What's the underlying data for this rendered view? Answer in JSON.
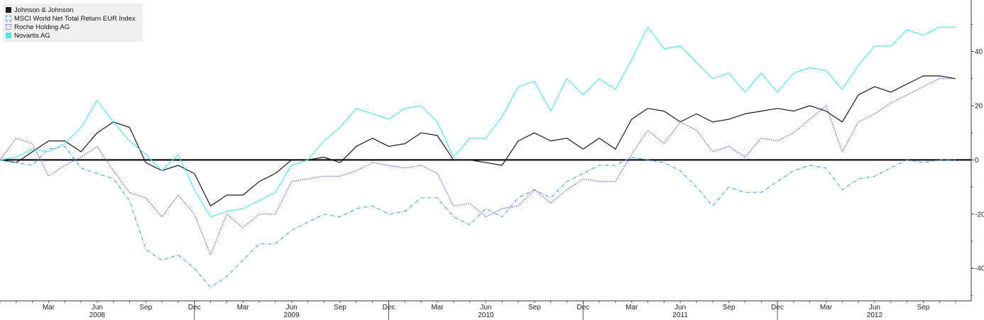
{
  "chart_data": {
    "type": "line",
    "title": "",
    "xlabel": "",
    "ylabel": "",
    "ylim": [
      -52,
      59
    ],
    "yticks": [
      -40,
      -20,
      0,
      20,
      40
    ],
    "ytick_labels": [
      "-40",
      "-20",
      "0",
      "20",
      "40"
    ],
    "x": [
      "2007-12",
      "2008-01",
      "2008-02",
      "2008-03",
      "2008-04",
      "2008-05",
      "2008-06",
      "2008-07",
      "2008-08",
      "2008-09",
      "2008-10",
      "2008-11",
      "2008-12",
      "2009-01",
      "2009-02",
      "2009-03",
      "2009-04",
      "2009-05",
      "2009-06",
      "2009-07",
      "2009-08",
      "2009-09",
      "2009-10",
      "2009-11",
      "2009-12",
      "2010-01",
      "2010-02",
      "2010-03",
      "2010-04",
      "2010-05",
      "2010-06",
      "2010-07",
      "2010-08",
      "2010-09",
      "2010-10",
      "2010-11",
      "2010-12",
      "2011-01",
      "2011-02",
      "2011-03",
      "2011-04",
      "2011-05",
      "2011-06",
      "2011-07",
      "2011-08",
      "2011-09",
      "2011-10",
      "2011-11",
      "2011-12",
      "2012-01",
      "2012-02",
      "2012-03",
      "2012-04",
      "2012-05",
      "2012-06",
      "2012-07",
      "2012-08",
      "2012-09",
      "2012-10",
      "2012-11"
    ],
    "month_ticks": [
      {
        "label": "Mar",
        "at": "2008-03"
      },
      {
        "label": "Jun",
        "at": "2008-06"
      },
      {
        "label": "Sep",
        "at": "2008-09"
      },
      {
        "label": "Dec",
        "at": "2008-12"
      },
      {
        "label": "Mar",
        "at": "2009-03"
      },
      {
        "label": "Jun",
        "at": "2009-06"
      },
      {
        "label": "Sep",
        "at": "2009-09"
      },
      {
        "label": "Dec",
        "at": "2009-12"
      },
      {
        "label": "Mar",
        "at": "2010-03"
      },
      {
        "label": "Jun",
        "at": "2010-06"
      },
      {
        "label": "Sep",
        "at": "2010-09"
      },
      {
        "label": "Dec",
        "at": "2010-12"
      },
      {
        "label": "Mar",
        "at": "2011-03"
      },
      {
        "label": "Jun",
        "at": "2011-06"
      },
      {
        "label": "Sep",
        "at": "2011-09"
      },
      {
        "label": "Dec",
        "at": "2011-12"
      },
      {
        "label": "Mar",
        "at": "2012-03"
      },
      {
        "label": "Jun",
        "at": "2012-06"
      },
      {
        "label": "Sep",
        "at": "2012-09"
      }
    ],
    "year_ticks": [
      {
        "label": "2008",
        "at": "2008-06"
      },
      {
        "label": "2009",
        "at": "2009-06"
      },
      {
        "label": "2010",
        "at": "2010-06"
      },
      {
        "label": "2011",
        "at": "2011-06"
      },
      {
        "label": "2012",
        "at": "2012-06"
      }
    ],
    "year_dividers": [
      "2008-12",
      "2009-12",
      "2010-12",
      "2011-12"
    ],
    "zero_line": true,
    "grid": false,
    "legend": "top-left",
    "series": [
      {
        "name": "Johnson & Johnson",
        "color": "#1a1a1a",
        "dash": "solid",
        "legend_fill": true,
        "values": [
          0,
          -1,
          3,
          7,
          7,
          3,
          10,
          14,
          12,
          -1,
          -4,
          -2,
          -5,
          -17,
          -13,
          -13,
          -8,
          -5,
          0,
          0,
          1,
          -1,
          5,
          8,
          5,
          6,
          10,
          9,
          0,
          0,
          -1,
          -2,
          7,
          10,
          7,
          8,
          4,
          8,
          4,
          15,
          19,
          18,
          14,
          17,
          14,
          15,
          17,
          18,
          19,
          18,
          20,
          18,
          14,
          24,
          27,
          25,
          28,
          31,
          31,
          30
        ],
        "values_tail_note": ""
      },
      {
        "name": "MSCI World Net Total Return EUR Index",
        "color": "#4aa3f0",
        "dash": "dashdot",
        "legend_fill": false,
        "values": [
          0,
          -1,
          -2,
          4,
          5,
          -3,
          -5,
          -7,
          -15,
          -33,
          -37,
          -35,
          -40,
          -47,
          -43,
          -37,
          -31,
          -31,
          -26,
          -23,
          -20,
          -21,
          -18,
          -17,
          -20,
          -19,
          -14,
          -14,
          -21,
          -24,
          -18,
          -21,
          -14,
          -11,
          -14,
          -8,
          -5,
          -2,
          -2,
          1,
          0,
          -1,
          -4,
          -10,
          -17,
          -10,
          -12,
          -12,
          -8,
          -4,
          -2,
          -3,
          -11,
          -7,
          -6,
          -3,
          0,
          -1,
          0,
          0
        ]
      },
      {
        "name": "Roche Holding AG",
        "color": "#6a4fd8",
        "dash": "dotted",
        "legend_fill": false,
        "values": [
          0,
          8,
          6,
          -6,
          -2,
          1,
          5,
          -4,
          -12,
          -14,
          -21,
          -13,
          -20,
          -35,
          -20,
          -25,
          -20,
          -20,
          -8,
          -7,
          -6,
          -6,
          -4,
          -1,
          -2,
          -3,
          -2,
          -5,
          -17,
          -16,
          -21,
          -18,
          -17,
          -11,
          -16,
          -11,
          -7,
          -8,
          -8,
          2,
          11,
          6,
          14,
          11,
          3,
          5,
          1,
          8,
          7,
          10,
          15,
          20,
          3,
          14,
          17,
          21,
          24,
          27,
          30,
          30
        ]
      },
      {
        "name": "Novartis AG",
        "color": "#55e3e3",
        "dash": "solid",
        "legend_fill": true,
        "values": [
          0,
          1,
          4,
          3,
          6,
          12,
          22,
          14,
          7,
          2,
          -4,
          2,
          -11,
          -21,
          -19,
          -18,
          -15,
          -12,
          -2,
          0,
          7,
          12,
          19,
          17,
          15,
          19,
          20,
          14,
          1,
          8,
          8,
          16,
          27,
          29,
          18,
          30,
          24,
          30,
          26,
          37,
          49,
          41,
          42,
          36,
          30,
          32,
          25,
          32,
          25,
          32,
          34,
          33,
          26,
          35,
          42,
          42,
          48,
          46,
          49,
          49
        ]
      }
    ]
  }
}
